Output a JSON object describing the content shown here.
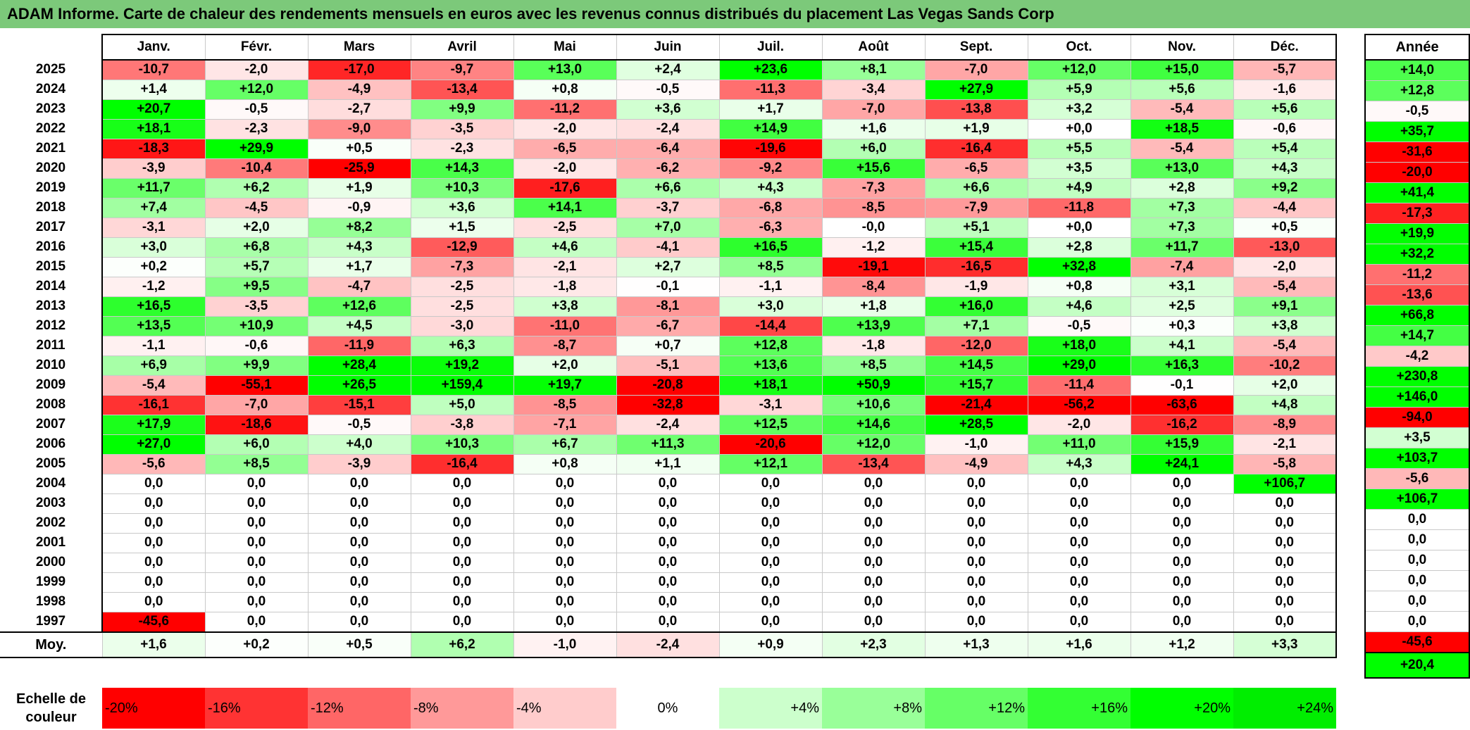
{
  "title": "ADAM Informe. Carte de chaleur des rendements mensuels en euros avec les revenus connus distribués du placement Las Vegas Sands Corp",
  "chart_data": {
    "type": "heatmap",
    "title": "ADAM Informe. Carte de chaleur des rendements mensuels en euros avec les revenus connus distribués du placement Las Vegas Sands Corp",
    "months": [
      "Janv.",
      "Févr.",
      "Mars",
      "Avril",
      "Mai",
      "Juin",
      "Juil.",
      "Août",
      "Sept.",
      "Oct.",
      "Nov.",
      "Déc."
    ],
    "year_header": "Année",
    "avg_label": "Moy.",
    "rows": [
      {
        "year": "2025",
        "values": [
          "-10,7",
          "-2,0",
          "-17,0",
          "-9,7",
          "+13,0",
          "+2,4",
          "+23,6",
          "+8,1",
          "-7,0",
          "+12,0",
          "+15,0",
          "-5,7"
        ],
        "annual": "+14,0"
      },
      {
        "year": "2024",
        "values": [
          "+1,4",
          "+12,0",
          "-4,9",
          "-13,4",
          "+0,8",
          "-0,5",
          "-11,3",
          "-3,4",
          "+27,9",
          "+5,9",
          "+5,6",
          "-1,6"
        ],
        "annual": "+12,8"
      },
      {
        "year": "2023",
        "values": [
          "+20,7",
          "-0,5",
          "-2,7",
          "+9,9",
          "-11,2",
          "+3,6",
          "+1,7",
          "-7,0",
          "-13,8",
          "+3,2",
          "-5,4",
          "+5,6"
        ],
        "annual": "-0,5"
      },
      {
        "year": "2022",
        "values": [
          "+18,1",
          "-2,3",
          "-9,0",
          "-3,5",
          "-2,0",
          "-2,4",
          "+14,9",
          "+1,6",
          "+1,9",
          "+0,0",
          "+18,5",
          "-0,6"
        ],
        "annual": "+35,7"
      },
      {
        "year": "2021",
        "values": [
          "-18,3",
          "+29,9",
          "+0,5",
          "-2,3",
          "-6,5",
          "-6,4",
          "-19,6",
          "+6,0",
          "-16,4",
          "+5,5",
          "-5,4",
          "+5,4"
        ],
        "annual": "-31,6"
      },
      {
        "year": "2020",
        "values": [
          "-3,9",
          "-10,4",
          "-25,9",
          "+14,3",
          "-2,0",
          "-6,2",
          "-9,2",
          "+15,6",
          "-6,5",
          "+3,5",
          "+13,0",
          "+4,3"
        ],
        "annual": "-20,0"
      },
      {
        "year": "2019",
        "values": [
          "+11,7",
          "+6,2",
          "+1,9",
          "+10,3",
          "-17,6",
          "+6,6",
          "+4,3",
          "-7,3",
          "+6,6",
          "+4,9",
          "+2,8",
          "+9,2"
        ],
        "annual": "+41,4"
      },
      {
        "year": "2018",
        "values": [
          "+7,4",
          "-4,5",
          "-0,9",
          "+3,6",
          "+14,1",
          "-3,7",
          "-6,8",
          "-8,5",
          "-7,9",
          "-11,8",
          "+7,3",
          "-4,4"
        ],
        "annual": "-17,3"
      },
      {
        "year": "2017",
        "values": [
          "-3,1",
          "+2,0",
          "+8,2",
          "+1,5",
          "-2,5",
          "+7,0",
          "-6,3",
          "-0,0",
          "+5,1",
          "+0,0",
          "+7,3",
          "+0,5"
        ],
        "annual": "+19,9"
      },
      {
        "year": "2016",
        "values": [
          "+3,0",
          "+6,8",
          "+4,3",
          "-12,9",
          "+4,6",
          "-4,1",
          "+16,5",
          "-1,2",
          "+15,4",
          "+2,8",
          "+11,7",
          "-13,0"
        ],
        "annual": "+32,2"
      },
      {
        "year": "2015",
        "values": [
          "+0,2",
          "+5,7",
          "+1,7",
          "-7,3",
          "-2,1",
          "+2,7",
          "+8,5",
          "-19,1",
          "-16,5",
          "+32,8",
          "-7,4",
          "-2,0"
        ],
        "annual": "-11,2"
      },
      {
        "year": "2014",
        "values": [
          "-1,2",
          "+9,5",
          "-4,7",
          "-2,5",
          "-1,8",
          "-0,1",
          "-1,1",
          "-8,4",
          "-1,9",
          "+0,8",
          "+3,1",
          "-5,4"
        ],
        "annual": "-13,6"
      },
      {
        "year": "2013",
        "values": [
          "+16,5",
          "-3,5",
          "+12,6",
          "-2,5",
          "+3,8",
          "-8,1",
          "+3,0",
          "+1,8",
          "+16,0",
          "+4,6",
          "+2,5",
          "+9,1"
        ],
        "annual": "+66,8"
      },
      {
        "year": "2012",
        "values": [
          "+13,5",
          "+10,9",
          "+4,5",
          "-3,0",
          "-11,0",
          "-6,7",
          "-14,4",
          "+13,9",
          "+7,1",
          "-0,5",
          "+0,3",
          "+3,8"
        ],
        "annual": "+14,7"
      },
      {
        "year": "2011",
        "values": [
          "-1,1",
          "-0,6",
          "-11,9",
          "+6,3",
          "-8,7",
          "+0,7",
          "+12,8",
          "-1,8",
          "-12,0",
          "+18,0",
          "+4,1",
          "-5,4"
        ],
        "annual": "-4,2"
      },
      {
        "year": "2010",
        "values": [
          "+6,9",
          "+9,9",
          "+28,4",
          "+19,2",
          "+2,0",
          "-5,1",
          "+13,6",
          "+8,5",
          "+14,5",
          "+29,0",
          "+16,3",
          "-10,2"
        ],
        "annual": "+230,8"
      },
      {
        "year": "2009",
        "values": [
          "-5,4",
          "-55,1",
          "+26,5",
          "+159,4",
          "+19,7",
          "-20,8",
          "+18,1",
          "+50,9",
          "+15,7",
          "-11,4",
          "-0,1",
          "+2,0"
        ],
        "annual": "+146,0"
      },
      {
        "year": "2008",
        "values": [
          "-16,1",
          "-7,0",
          "-15,1",
          "+5,0",
          "-8,5",
          "-32,8",
          "-3,1",
          "+10,6",
          "-21,4",
          "-56,2",
          "-63,6",
          "+4,8"
        ],
        "annual": "-94,0"
      },
      {
        "year": "2007",
        "values": [
          "+17,9",
          "-18,6",
          "-0,5",
          "-3,8",
          "-7,1",
          "-2,4",
          "+12,5",
          "+14,6",
          "+28,5",
          "-2,0",
          "-16,2",
          "-8,9"
        ],
        "annual": "+3,5"
      },
      {
        "year": "2006",
        "values": [
          "+27,0",
          "+6,0",
          "+4,0",
          "+10,3",
          "+6,7",
          "+11,3",
          "-20,6",
          "+12,0",
          "-1,0",
          "+11,0",
          "+15,9",
          "-2,1"
        ],
        "annual": "+103,7"
      },
      {
        "year": "2005",
        "values": [
          "-5,6",
          "+8,5",
          "-3,9",
          "-16,4",
          "+0,8",
          "+1,1",
          "+12,1",
          "-13,4",
          "-4,9",
          "+4,3",
          "+24,1",
          "-5,8"
        ],
        "annual": "-5,6"
      },
      {
        "year": "2004",
        "values": [
          "0,0",
          "0,0",
          "0,0",
          "0,0",
          "0,0",
          "0,0",
          "0,0",
          "0,0",
          "0,0",
          "0,0",
          "0,0",
          "+106,7"
        ],
        "annual": "+106,7"
      },
      {
        "year": "2003",
        "values": [
          "0,0",
          "0,0",
          "0,0",
          "0,0",
          "0,0",
          "0,0",
          "0,0",
          "0,0",
          "0,0",
          "0,0",
          "0,0",
          "0,0"
        ],
        "annual": "0,0"
      },
      {
        "year": "2002",
        "values": [
          "0,0",
          "0,0",
          "0,0",
          "0,0",
          "0,0",
          "0,0",
          "0,0",
          "0,0",
          "0,0",
          "0,0",
          "0,0",
          "0,0"
        ],
        "annual": "0,0"
      },
      {
        "year": "2001",
        "values": [
          "0,0",
          "0,0",
          "0,0",
          "0,0",
          "0,0",
          "0,0",
          "0,0",
          "0,0",
          "0,0",
          "0,0",
          "0,0",
          "0,0"
        ],
        "annual": "0,0"
      },
      {
        "year": "2000",
        "values": [
          "0,0",
          "0,0",
          "0,0",
          "0,0",
          "0,0",
          "0,0",
          "0,0",
          "0,0",
          "0,0",
          "0,0",
          "0,0",
          "0,0"
        ],
        "annual": "0,0"
      },
      {
        "year": "1999",
        "values": [
          "0,0",
          "0,0",
          "0,0",
          "0,0",
          "0,0",
          "0,0",
          "0,0",
          "0,0",
          "0,0",
          "0,0",
          "0,0",
          "0,0"
        ],
        "annual": "0,0"
      },
      {
        "year": "1998",
        "values": [
          "0,0",
          "0,0",
          "0,0",
          "0,0",
          "0,0",
          "0,0",
          "0,0",
          "0,0",
          "0,0",
          "0,0",
          "0,0",
          "0,0"
        ],
        "annual": "0,0"
      },
      {
        "year": "1997",
        "values": [
          "-45,6",
          "0,0",
          "0,0",
          "0,0",
          "0,0",
          "0,0",
          "0,0",
          "0,0",
          "0,0",
          "0,0",
          "0,0",
          "0,0"
        ],
        "annual": "-45,6"
      }
    ],
    "averages": [
      "+1,6",
      "+0,2",
      "+0,5",
      "+6,2",
      "-1,0",
      "-2,4",
      "+0,9",
      "+2,3",
      "+1,3",
      "+1,6",
      "+1,2",
      "+3,3"
    ],
    "annual_average": "+20,4",
    "scale": {
      "label": "Echelle de couleur",
      "steps": [
        {
          "label": "-20%",
          "value": -20,
          "color": "#ff0000"
        },
        {
          "label": "-16%",
          "value": -16,
          "color": "#ff3333"
        },
        {
          "label": "-12%",
          "value": -12,
          "color": "#ff6666"
        },
        {
          "label": "-8%",
          "value": -8,
          "color": "#ff9999"
        },
        {
          "label": "-4%",
          "value": -4,
          "color": "#ffcccc"
        },
        {
          "label": "0%",
          "value": 0,
          "color": "#ffffff"
        },
        {
          "label": "+4%",
          "value": 4,
          "color": "#ccffcc"
        },
        {
          "label": "+8%",
          "value": 8,
          "color": "#99ff99"
        },
        {
          "label": "+12%",
          "value": 12,
          "color": "#66ff66"
        },
        {
          "label": "+16%",
          "value": 16,
          "color": "#33ff33"
        },
        {
          "label": "+20%",
          "value": 20,
          "color": "#00ff00"
        },
        {
          "label": "+24%",
          "value": 24,
          "color": "#00ee00"
        }
      ]
    }
  }
}
